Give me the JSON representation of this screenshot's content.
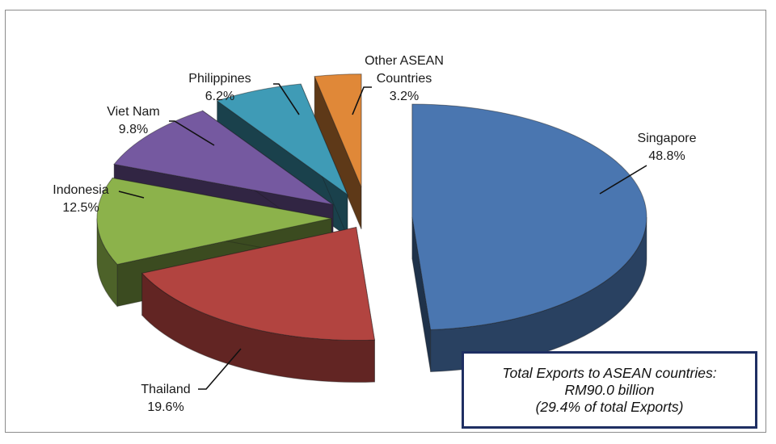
{
  "chart_data": {
    "type": "pie",
    "title": "",
    "slices": [
      {
        "label": "Singapore",
        "value_label": "48.8%",
        "value": 48.8,
        "color": "#4a76b0"
      },
      {
        "label": "Thailand",
        "value_label": "19.6%",
        "value": 19.6,
        "color": "#b24440"
      },
      {
        "label": "Indonesia",
        "value_label": "12.5%",
        "value": 12.5,
        "color": "#8cb24b"
      },
      {
        "label": "Viet Nam",
        "value_label": "9.8%",
        "value": 9.8,
        "color": "#7559a0"
      },
      {
        "label": "Philippines",
        "value_label": "6.2%",
        "value": 6.2,
        "color": "#3f9bb6"
      },
      {
        "label_lines": [
          "Other ASEAN",
          "Countries"
        ],
        "value_label": "3.2%",
        "value": 3.2,
        "color": "#e08838"
      }
    ],
    "exploded": true,
    "three_d": true,
    "labels_outside_with_leader_lines": true
  },
  "note": {
    "line1": "Total Exports to ASEAN countries:",
    "line2": "RM90.0 billion",
    "line3": "(29.4% of total Exports)"
  }
}
